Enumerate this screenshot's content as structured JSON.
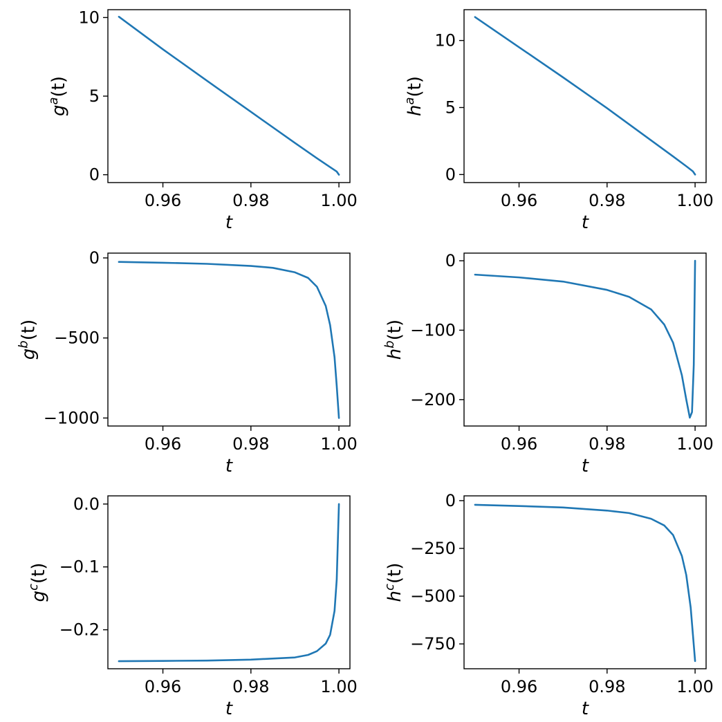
{
  "chart_data": [
    {
      "type": "line",
      "xlabel": "t",
      "ylabel": {
        "base": "g",
        "sup": "a",
        "suffix": "(t)"
      },
      "xlim": [
        0.9475,
        1.0025
      ],
      "ylim": [
        -0.5,
        10.5
      ],
      "xticks": [
        {
          "value": 0.96,
          "label": "0.96"
        },
        {
          "value": 0.98,
          "label": "0.98"
        },
        {
          "value": 1.0,
          "label": "1.00"
        }
      ],
      "yticks": [
        {
          "value": 0,
          "label": "0"
        },
        {
          "value": 5,
          "label": "5"
        },
        {
          "value": 10,
          "label": "10"
        }
      ],
      "series": [
        {
          "color": "#1f77b4",
          "x": [
            0.95,
            0.96,
            0.97,
            0.98,
            0.99,
            0.995,
            0.998,
            0.9995,
            1.0
          ],
          "y": [
            10.05,
            7.98,
            5.98,
            4.0,
            2.02,
            1.05,
            0.48,
            0.2,
            0.0
          ]
        }
      ]
    },
    {
      "type": "line",
      "xlabel": "t",
      "ylabel": {
        "base": "h",
        "sup": "a",
        "suffix": "(t)"
      },
      "xlim": [
        0.9475,
        1.0025
      ],
      "ylim": [
        -0.6,
        12.3
      ],
      "xticks": [
        {
          "value": 0.96,
          "label": "0.96"
        },
        {
          "value": 0.98,
          "label": "0.98"
        },
        {
          "value": 1.0,
          "label": "1.00"
        }
      ],
      "yticks": [
        {
          "value": 0,
          "label": "0"
        },
        {
          "value": 5,
          "label": "5"
        },
        {
          "value": 10,
          "label": "10"
        }
      ],
      "series": [
        {
          "color": "#1f77b4",
          "x": [
            0.95,
            0.96,
            0.97,
            0.98,
            0.99,
            0.995,
            0.998,
            0.9995,
            1.0
          ],
          "y": [
            11.75,
            9.5,
            7.25,
            4.95,
            2.55,
            1.35,
            0.62,
            0.24,
            0.0
          ]
        }
      ]
    },
    {
      "type": "line",
      "xlabel": "t",
      "ylabel": {
        "base": "g",
        "sup": "b",
        "suffix": "(t)"
      },
      "xlim": [
        0.9475,
        1.0025
      ],
      "ylim": [
        -1050,
        30
      ],
      "xticks": [
        {
          "value": 0.96,
          "label": "0.96"
        },
        {
          "value": 0.98,
          "label": "0.98"
        },
        {
          "value": 1.0,
          "label": "1.00"
        }
      ],
      "yticks": [
        {
          "value": 0,
          "label": "0"
        },
        {
          "value": -500,
          "label": "−500"
        },
        {
          "value": -1000,
          "label": "−1000"
        }
      ],
      "series": [
        {
          "color": "#1f77b4",
          "x": [
            0.95,
            0.96,
            0.97,
            0.98,
            0.985,
            0.99,
            0.993,
            0.995,
            0.997,
            0.998,
            0.999,
            0.9995,
            1.0
          ],
          "y": [
            -25,
            -30,
            -37,
            -50,
            -62,
            -90,
            -125,
            -180,
            -300,
            -420,
            -620,
            -800,
            -1000
          ]
        }
      ]
    },
    {
      "type": "line",
      "xlabel": "t",
      "ylabel": {
        "base": "h",
        "sup": "b",
        "suffix": "(t)"
      },
      "xlim": [
        0.9475,
        1.0025
      ],
      "ylim": [
        -238,
        11
      ],
      "xticks": [
        {
          "value": 0.96,
          "label": "0.96"
        },
        {
          "value": 0.98,
          "label": "0.98"
        },
        {
          "value": 1.0,
          "label": "1.00"
        }
      ],
      "yticks": [
        {
          "value": 0,
          "label": "0"
        },
        {
          "value": -100,
          "label": "−100"
        },
        {
          "value": -200,
          "label": "−200"
        }
      ],
      "series": [
        {
          "color": "#1f77b4",
          "x": [
            0.95,
            0.96,
            0.97,
            0.98,
            0.985,
            0.99,
            0.993,
            0.995,
            0.997,
            0.998,
            0.9988,
            0.9993,
            0.9997,
            1.0
          ],
          "y": [
            -20,
            -24,
            -30,
            -42,
            -52,
            -70,
            -92,
            -118,
            -165,
            -200,
            -226,
            -218,
            -150,
            0
          ]
        }
      ]
    },
    {
      "type": "line",
      "xlabel": "t",
      "ylabel": {
        "base": "g",
        "sup": "c",
        "suffix": "(t)"
      },
      "xlim": [
        0.9475,
        1.0025
      ],
      "ylim": [
        -0.262,
        0.013
      ],
      "xticks": [
        {
          "value": 0.96,
          "label": "0.96"
        },
        {
          "value": 0.98,
          "label": "0.98"
        },
        {
          "value": 1.0,
          "label": "1.00"
        }
      ],
      "yticks": [
        {
          "value": 0.0,
          "label": "0.0"
        },
        {
          "value": -0.1,
          "label": "−0.1"
        },
        {
          "value": -0.2,
          "label": "−0.2"
        }
      ],
      "series": [
        {
          "color": "#1f77b4",
          "x": [
            0.95,
            0.96,
            0.97,
            0.98,
            0.99,
            0.993,
            0.995,
            0.997,
            0.998,
            0.999,
            0.9995,
            1.0
          ],
          "y": [
            -0.25,
            -0.2495,
            -0.249,
            -0.2475,
            -0.244,
            -0.24,
            -0.234,
            -0.222,
            -0.208,
            -0.17,
            -0.12,
            0.0
          ]
        }
      ]
    },
    {
      "type": "line",
      "xlabel": "t",
      "ylabel": {
        "base": "h",
        "sup": "c",
        "suffix": "(t)"
      },
      "xlim": [
        0.9475,
        1.0025
      ],
      "ylim": [
        -880,
        25
      ],
      "xticks": [
        {
          "value": 0.96,
          "label": "0.96"
        },
        {
          "value": 0.98,
          "label": "0.98"
        },
        {
          "value": 1.0,
          "label": "1.00"
        }
      ],
      "yticks": [
        {
          "value": 0,
          "label": "0"
        },
        {
          "value": -250,
          "label": "−250"
        },
        {
          "value": -500,
          "label": "−500"
        },
        {
          "value": -750,
          "label": "−750"
        }
      ],
      "series": [
        {
          "color": "#1f77b4",
          "x": [
            0.95,
            0.96,
            0.97,
            0.98,
            0.985,
            0.99,
            0.993,
            0.995,
            0.997,
            0.998,
            0.999,
            0.9995,
            1.0
          ],
          "y": [
            -22,
            -28,
            -36,
            -52,
            -65,
            -95,
            -130,
            -180,
            -290,
            -390,
            -560,
            -700,
            -840
          ]
        }
      ]
    }
  ]
}
